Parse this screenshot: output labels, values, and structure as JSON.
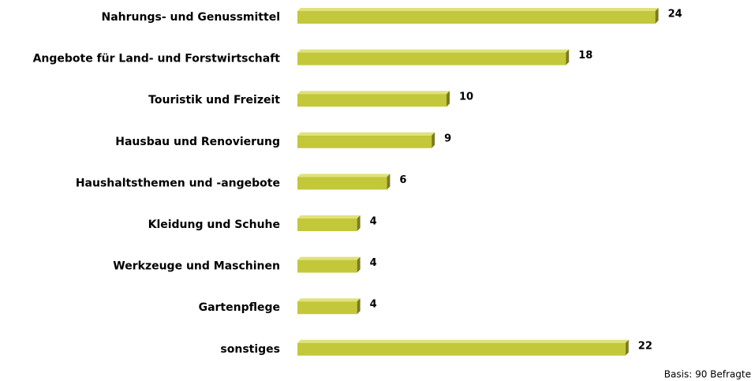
{
  "chart_data": {
    "type": "bar",
    "orientation": "horizontal",
    "categories": [
      "Nahrungs- und Genussmittel",
      "Angebote für Land- und Forstwirtschaft",
      "Touristik und Freizeit",
      "Hausbau und Renovierung",
      "Haushaltsthemen und -angebote",
      "Kleidung und Schuhe",
      "Werkzeuge und Maschinen",
      "Gartenpflege",
      "sonstiges"
    ],
    "values": [
      24,
      18,
      10,
      9,
      6,
      4,
      4,
      4,
      22
    ],
    "color": "#c3c73a",
    "note": "Basis: 90 Befragte"
  }
}
